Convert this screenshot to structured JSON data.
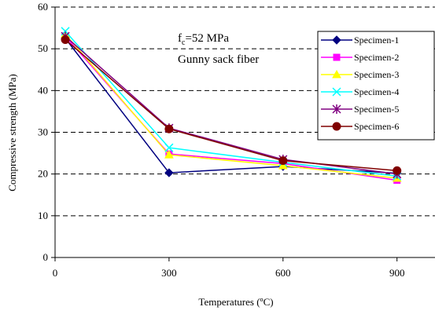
{
  "chart_data": {
    "type": "line",
    "title": "",
    "xlabel": "Temperatures (ºC)",
    "ylabel": "Compressive strength (MPa)",
    "xlim": [
      0,
      1000
    ],
    "ylim": [
      0,
      60
    ],
    "x_ticks": [
      0,
      300,
      600,
      900
    ],
    "y_ticks": [
      0,
      10,
      20,
      30,
      40,
      50,
      60
    ],
    "grid": "horizontal-dashed",
    "legend_position": "top-right",
    "annotations": [
      {
        "pre": "f",
        "sub": "c",
        "post": "=52 MPa"
      },
      {
        "text": "Gunny sack fiber"
      }
    ],
    "x": [
      27,
      300,
      600,
      900
    ],
    "series": [
      {
        "name": "Specimen-1",
        "values": [
          52.5,
          20.3,
          21.8,
          20.2
        ],
        "color": "#000080",
        "marker": "diamond"
      },
      {
        "name": "Specimen-2",
        "values": [
          53.0,
          24.8,
          22.5,
          18.5
        ],
        "color": "#FF00FF",
        "marker": "square"
      },
      {
        "name": "Specimen-3",
        "values": [
          53.5,
          24.6,
          22.0,
          19.0
        ],
        "color": "#FFFF00",
        "marker": "triangle"
      },
      {
        "name": "Specimen-4",
        "values": [
          54.2,
          26.3,
          22.8,
          19.5
        ],
        "color": "#00FFFF",
        "marker": "x"
      },
      {
        "name": "Specimen-5",
        "values": [
          53.0,
          31.0,
          23.5,
          20.0
        ],
        "color": "#800080",
        "marker": "asterisk"
      },
      {
        "name": "Specimen-6",
        "values": [
          52.2,
          30.8,
          23.2,
          20.8
        ],
        "color": "#800000",
        "marker": "circle"
      }
    ]
  }
}
